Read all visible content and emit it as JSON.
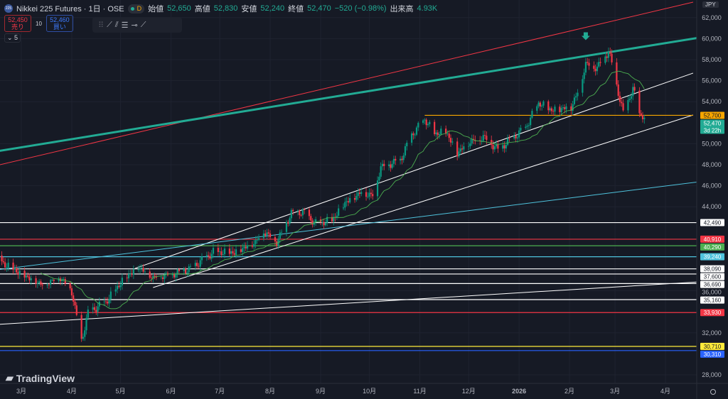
{
  "header": {
    "badge": "225",
    "symbol": "Nikkei 225 Futures · 1日 · OSE",
    "interval_badge": "D",
    "open_label": "始値",
    "open": "52,650",
    "high_label": "高値",
    "high": "52,830",
    "low_label": "安値",
    "low": "52,240",
    "close_label": "終値",
    "close": "52,470",
    "change": "−520 (−0.98%)",
    "volume_label": "出来高",
    "volume": "4.93K"
  },
  "trade": {
    "sell_price": "52,450",
    "sell_label": "売り",
    "spread": "10",
    "buy_price": "52,460",
    "buy_label": "買い"
  },
  "indicator_count": "5",
  "toolbar": {
    "tools": [
      "trend-line",
      "parallel-channel",
      "fib-lines",
      "horizontal-ray",
      "ray"
    ]
  },
  "currency": "JPY",
  "branding": "TradingView",
  "colors": {
    "background": "#161a25",
    "up": "#089981",
    "down": "#f23645",
    "ma": "#4caf50"
  },
  "chart_data": {
    "type": "candlestick",
    "ylim": [
      27000,
      63000
    ],
    "y_ticks": [
      "62,000",
      "60,000",
      "58,000",
      "56,000",
      "54,000",
      "50,000",
      "48,000",
      "46,000",
      "44,000",
      "36,000",
      "32,000",
      "28,000"
    ],
    "y_tick_values": [
      62000,
      60000,
      58000,
      56000,
      54000,
      50000,
      48000,
      46000,
      44000,
      36000,
      32000,
      28000
    ],
    "x_ticks": [
      {
        "label": "3月",
        "date": "2025-03-01"
      },
      {
        "label": "4月",
        "date": "2025-04-01"
      },
      {
        "label": "5月",
        "date": "2025-05-01"
      },
      {
        "label": "6月",
        "date": "2025-06-01"
      },
      {
        "label": "7月",
        "date": "2025-07-01"
      },
      {
        "label": "8月",
        "date": "2025-08-01"
      },
      {
        "label": "9月",
        "date": "2025-09-01"
      },
      {
        "label": "10月",
        "date": "2025-10-01"
      },
      {
        "label": "11月",
        "date": "2025-11-01"
      },
      {
        "label": "12月",
        "date": "2025-12-01"
      },
      {
        "label": "2026",
        "date": "2026-01-01"
      },
      {
        "label": "2月",
        "date": "2026-02-01"
      },
      {
        "label": "3月",
        "date": "2026-03-01"
      },
      {
        "label": "4月",
        "date": "2026-04-01"
      }
    ],
    "price_path": [
      [
        "2025-02-14",
        39000
      ],
      [
        "2025-03-01",
        37660
      ],
      [
        "2025-03-14",
        36650
      ],
      [
        "2025-03-25",
        37330
      ],
      [
        "2025-04-01",
        35970
      ],
      [
        "2025-04-07",
        31240
      ],
      [
        "2025-04-11",
        33950
      ],
      [
        "2025-04-22",
        34960
      ],
      [
        "2025-05-02",
        36990
      ],
      [
        "2025-05-12",
        38340
      ],
      [
        "2025-05-21",
        37330
      ],
      [
        "2025-06-02",
        37660
      ],
      [
        "2025-06-13",
        38140
      ],
      [
        "2025-06-27",
        39690
      ],
      [
        "2025-07-10",
        39690
      ],
      [
        "2025-07-23",
        40700
      ],
      [
        "2025-07-28",
        41720
      ],
      [
        "2025-08-05",
        40700
      ],
      [
        "2025-08-14",
        43410
      ],
      [
        "2025-08-21",
        43540
      ],
      [
        "2025-08-29",
        42390
      ],
      [
        "2025-09-08",
        42730
      ],
      [
        "2025-09-16",
        44420
      ],
      [
        "2025-09-26",
        45430
      ],
      [
        "2025-10-03",
        45100
      ],
      [
        "2025-10-08",
        47800
      ],
      [
        "2025-10-20",
        48470
      ],
      [
        "2025-10-27",
        50840
      ],
      [
        "2025-11-04",
        52330
      ],
      [
        "2025-11-10",
        50970
      ],
      [
        "2025-11-17",
        51180
      ],
      [
        "2025-11-24",
        49150
      ],
      [
        "2025-12-01",
        50160
      ],
      [
        "2025-12-10",
        50700
      ],
      [
        "2025-12-19",
        49490
      ],
      [
        "2025-12-26",
        50300
      ],
      [
        "2026-01-05",
        51510
      ],
      [
        "2026-01-13",
        53880
      ],
      [
        "2026-01-21",
        53200
      ],
      [
        "2026-02-02",
        53540
      ],
      [
        "2026-02-06",
        54890
      ],
      [
        "2026-02-11",
        57600
      ],
      [
        "2026-02-18",
        57260
      ],
      [
        "2026-02-25",
        58810
      ],
      [
        "2026-02-27",
        57600
      ],
      [
        "2026-03-03",
        54890
      ],
      [
        "2026-03-06",
        52870
      ],
      [
        "2026-03-12",
        55230
      ],
      [
        "2026-03-16",
        52870
      ],
      [
        "2026-03-19",
        52470
      ]
    ],
    "levels": [
      {
        "label": "42,490",
        "value": 42490,
        "color": "#ffffff"
      },
      {
        "label": "40,910",
        "value": 40910,
        "color": "#f23645"
      },
      {
        "label": "40,290",
        "value": 40290,
        "color": "#4caf50"
      },
      {
        "label": "39,240",
        "value": 39240,
        "color": "#4fc3dd"
      },
      {
        "label": "38,090",
        "value": 38090,
        "color": "#ffffff"
      },
      {
        "label": "37,600",
        "value": 37600,
        "color": "#ffffff"
      },
      {
        "label": "36,690",
        "value": 36690,
        "color": "#ffffff"
      },
      {
        "label": "35,160",
        "value": 35160,
        "color": "#ffffff"
      },
      {
        "label": "33,930",
        "value": 33930,
        "color": "#f23645"
      },
      {
        "label": "30,710",
        "value": 30710,
        "color": "#ffeb3b"
      },
      {
        "label": "30,310",
        "value": 30310,
        "color": "#2962ff"
      }
    ],
    "trendlines": [
      {
        "color": "#f23645",
        "width": 1,
        "from": [
          "2025-02-14",
          47930
        ],
        "to": [
          "2026-04-18",
          63470
        ]
      },
      {
        "color": "#22ab94",
        "width": 3,
        "from": [
          "2025-02-14",
          49280
        ],
        "to": [
          "2026-04-22",
          60100
        ]
      },
      {
        "color": "#ffffff",
        "width": 1,
        "from": [
          "2025-05-10",
          38140
        ],
        "to": [
          "2026-04-18",
          56720
        ]
      },
      {
        "color": "#ffffff",
        "width": 1,
        "from": [
          "2025-05-21",
          36310
        ],
        "to": [
          "2026-04-18",
          52730
        ]
      },
      {
        "color": "#ffffff",
        "width": 1,
        "from": [
          "2025-02-14",
          32800
        ],
        "to": [
          "2026-04-22",
          36850
        ]
      },
      {
        "color": "#4fc3dd",
        "width": 1,
        "from": [
          "2025-02-14",
          38000
        ],
        "to": [
          "2026-04-22",
          46380
        ]
      }
    ],
    "resistance": {
      "label": "52,700",
      "value": 52700,
      "from": "2025-11-04",
      "to": "2026-04-18",
      "color": "#f7a600"
    },
    "last_price": {
      "label": "52,470",
      "countdown": "3d 22h",
      "value": 52470,
      "color": "#22ab94"
    },
    "arrow": {
      "date": "2026-02-11",
      "value": 60200,
      "color": "#22ab94"
    }
  }
}
